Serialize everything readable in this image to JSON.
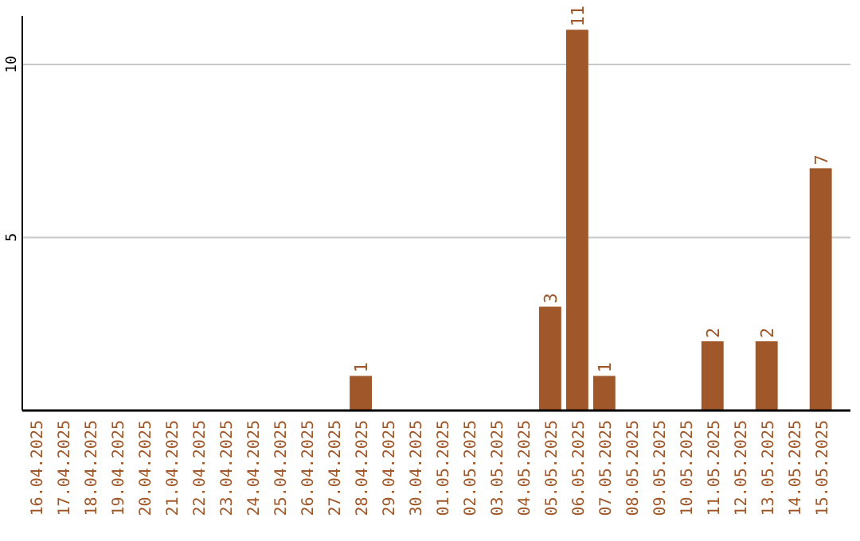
{
  "chart_data": {
    "type": "bar",
    "categories": [
      "16.04.2025",
      "17.04.2025",
      "18.04.2025",
      "19.04.2025",
      "20.04.2025",
      "21.04.2025",
      "22.04.2025",
      "23.04.2025",
      "24.04.2025",
      "25.04.2025",
      "26.04.2025",
      "27.04.2025",
      "28.04.2025",
      "29.04.2025",
      "30.04.2025",
      "01.05.2025",
      "02.05.2025",
      "03.05.2025",
      "04.05.2025",
      "05.05.2025",
      "06.05.2025",
      "07.05.2025",
      "08.05.2025",
      "09.05.2025",
      "10.05.2025",
      "11.05.2025",
      "12.05.2025",
      "13.05.2025",
      "14.05.2025",
      "15.05.2025"
    ],
    "values": [
      0,
      0,
      0,
      0,
      0,
      0,
      0,
      0,
      0,
      0,
      0,
      0,
      1,
      0,
      0,
      0,
      0,
      0,
      0,
      3,
      11,
      1,
      0,
      0,
      0,
      2,
      0,
      2,
      0,
      7
    ],
    "value_labels": [
      null,
      null,
      null,
      null,
      null,
      null,
      null,
      null,
      null,
      null,
      null,
      null,
      "1",
      null,
      null,
      null,
      null,
      null,
      null,
      "3",
      "11",
      "1",
      null,
      null,
      null,
      "2",
      null,
      "2",
      null,
      "7"
    ],
    "color": "#a0582a",
    "ylim": [
      0,
      11.4
    ],
    "yticks": [
      5,
      10
    ],
    "grid": "y"
  }
}
